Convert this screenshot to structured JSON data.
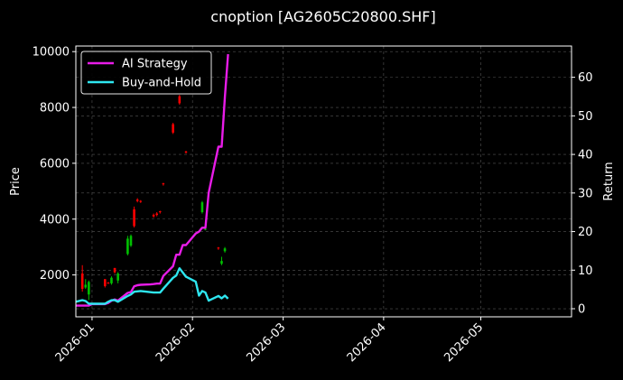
{
  "chart_data": {
    "type": "line",
    "title": "cnoption [AG2605C20800.SHF]",
    "ylabel_left": "Price",
    "ylabel_right": "Return",
    "grid": true,
    "legend_position": "top-left",
    "colors": {
      "background": "#000000",
      "ai_strategy": "#e81ce8",
      "buy_and_hold": "#2ee6f0",
      "candle_up": "#ff0000",
      "candle_down": "#00c000",
      "grid": "#555555"
    },
    "x_range": [
      "2025-12-27",
      "2026-05-29"
    ],
    "x_ticks": [
      "2026-01",
      "2026-02",
      "2026-03",
      "2026-04",
      "2026-05"
    ],
    "y_left_range": [
      500,
      10200
    ],
    "y_left_ticks": [
      2000,
      4000,
      6000,
      8000,
      10000
    ],
    "y_right_range": [
      -2.1,
      68.1
    ],
    "y_right_ticks": [
      0,
      10,
      20,
      30,
      40,
      50,
      60
    ],
    "candles": [
      {
        "date": "2025-12-29",
        "open": 1500,
        "high": 2350,
        "low": 1400,
        "close": 2050
      },
      {
        "date": "2025-12-30",
        "open": 1650,
        "high": 1850,
        "low": 1500,
        "close": 1550
      },
      {
        "date": "2025-12-31",
        "open": 1750,
        "high": 1800,
        "low": 1100,
        "close": 1300
      },
      {
        "date": "2026-01-05",
        "open": 1600,
        "high": 1850,
        "low": 1550,
        "close": 1850
      },
      {
        "date": "2026-01-06",
        "open": 1700,
        "high": 1750,
        "low": 1680,
        "close": 1720
      },
      {
        "date": "2026-01-07",
        "open": 1900,
        "high": 1950,
        "low": 1650,
        "close": 1700
      },
      {
        "date": "2026-01-08",
        "open": 2100,
        "high": 2250,
        "low": 2050,
        "close": 2250
      },
      {
        "date": "2026-01-09",
        "open": 2050,
        "high": 2100,
        "low": 1700,
        "close": 1800
      },
      {
        "date": "2026-01-12",
        "open": 3300,
        "high": 3400,
        "low": 2700,
        "close": 2750
      },
      {
        "date": "2026-01-13",
        "open": 3400,
        "high": 3450,
        "low": 3000,
        "close": 3050
      },
      {
        "date": "2026-01-14",
        "open": 3750,
        "high": 4450,
        "low": 3700,
        "close": 4350
      },
      {
        "date": "2026-01-15",
        "open": 4650,
        "high": 4750,
        "low": 4600,
        "close": 4700
      },
      {
        "date": "2026-01-16",
        "open": 4620,
        "high": 4680,
        "low": 4580,
        "close": 4650
      },
      {
        "date": "2026-01-20",
        "open": 4100,
        "high": 4200,
        "low": 4050,
        "close": 4150
      },
      {
        "date": "2026-01-21",
        "open": 4150,
        "high": 4250,
        "low": 4100,
        "close": 4200
      },
      {
        "date": "2026-01-22",
        "open": 4250,
        "high": 4300,
        "low": 4200,
        "close": 4280
      },
      {
        "date": "2026-01-23",
        "open": 5250,
        "high": 5300,
        "low": 5200,
        "close": 5280
      },
      {
        "date": "2026-01-26",
        "open": 7100,
        "high": 7450,
        "low": 7050,
        "close": 7400
      },
      {
        "date": "2026-01-28",
        "open": 8150,
        "high": 8450,
        "low": 8100,
        "close": 8400
      },
      {
        "date": "2026-01-30",
        "open": 6400,
        "high": 6450,
        "low": 6350,
        "close": 6420
      },
      {
        "date": "2026-02-04",
        "open": 4600,
        "high": 4650,
        "low": 4200,
        "close": 4250
      },
      {
        "date": "2026-02-05",
        "open": 3650,
        "high": 3700,
        "low": 3600,
        "close": 3620
      },
      {
        "date": "2026-02-09",
        "open": 2950,
        "high": 3000,
        "low": 2900,
        "close": 2980
      },
      {
        "date": "2026-02-10",
        "open": 2500,
        "high": 2650,
        "low": 2350,
        "close": 2400
      },
      {
        "date": "2026-02-11",
        "open": 2950,
        "high": 3000,
        "low": 2800,
        "close": 2850
      }
    ],
    "series": [
      {
        "name": "AI Strategy",
        "color": "#e81ce8",
        "axis": "right",
        "points": [
          [
            "2025-12-27",
            0.8
          ],
          [
            "2025-12-31",
            0.8
          ],
          [
            "2026-01-01",
            1.2
          ],
          [
            "2026-01-05",
            1.2
          ],
          [
            "2026-01-06",
            1.5
          ],
          [
            "2026-01-07",
            2.1
          ],
          [
            "2026-01-08",
            2.4
          ],
          [
            "2026-01-09",
            2.1
          ],
          [
            "2026-01-12",
            4.1
          ],
          [
            "2026-01-13",
            4.3
          ],
          [
            "2026-01-14",
            5.8
          ],
          [
            "2026-01-15",
            6.1
          ],
          [
            "2026-01-16",
            6.2
          ],
          [
            "2026-01-19",
            6.3
          ],
          [
            "2026-01-20",
            6.4
          ],
          [
            "2026-01-21",
            6.5
          ],
          [
            "2026-01-22",
            6.5
          ],
          [
            "2026-01-23",
            8.5
          ],
          [
            "2026-01-26",
            11.0
          ],
          [
            "2026-01-27",
            14.0
          ],
          [
            "2026-01-28",
            14.0
          ],
          [
            "2026-01-29",
            16.5
          ],
          [
            "2026-01-30",
            16.5
          ],
          [
            "2026-02-02",
            19.5
          ],
          [
            "2026-02-03",
            20.0
          ],
          [
            "2026-02-04",
            21.0
          ],
          [
            "2026-02-05",
            21.0
          ],
          [
            "2026-02-06",
            30.0
          ],
          [
            "2026-02-09",
            42.0
          ],
          [
            "2026-02-10",
            42.0
          ],
          [
            "2026-02-11",
            55.0
          ],
          [
            "2026-02-12",
            66.0
          ]
        ]
      },
      {
        "name": "Buy-and-Hold",
        "color": "#2ee6f0",
        "axis": "right",
        "points": [
          [
            "2025-12-27",
            1.8
          ],
          [
            "2025-12-29",
            2.2
          ],
          [
            "2025-12-30",
            2.0
          ],
          [
            "2025-12-31",
            1.3
          ],
          [
            "2026-01-05",
            1.3
          ],
          [
            "2026-01-06",
            1.8
          ],
          [
            "2026-01-07",
            2.2
          ],
          [
            "2026-01-08",
            2.2
          ],
          [
            "2026-01-09",
            1.8
          ],
          [
            "2026-01-12",
            3.3
          ],
          [
            "2026-01-13",
            3.7
          ],
          [
            "2026-01-14",
            4.4
          ],
          [
            "2026-01-16",
            4.6
          ],
          [
            "2026-01-20",
            4.2
          ],
          [
            "2026-01-22",
            4.2
          ],
          [
            "2026-01-23",
            5.2
          ],
          [
            "2026-01-26",
            8.0
          ],
          [
            "2026-01-27",
            8.6
          ],
          [
            "2026-01-28",
            10.5
          ],
          [
            "2026-01-29",
            9.4
          ],
          [
            "2026-01-30",
            8.3
          ],
          [
            "2026-02-02",
            7.0
          ],
          [
            "2026-02-03",
            3.4
          ],
          [
            "2026-02-04",
            4.6
          ],
          [
            "2026-02-05",
            4.2
          ],
          [
            "2026-02-06",
            2.1
          ],
          [
            "2026-02-09",
            3.3
          ],
          [
            "2026-02-10",
            2.7
          ],
          [
            "2026-02-11",
            3.4
          ],
          [
            "2026-02-12",
            2.6
          ]
        ]
      }
    ]
  }
}
